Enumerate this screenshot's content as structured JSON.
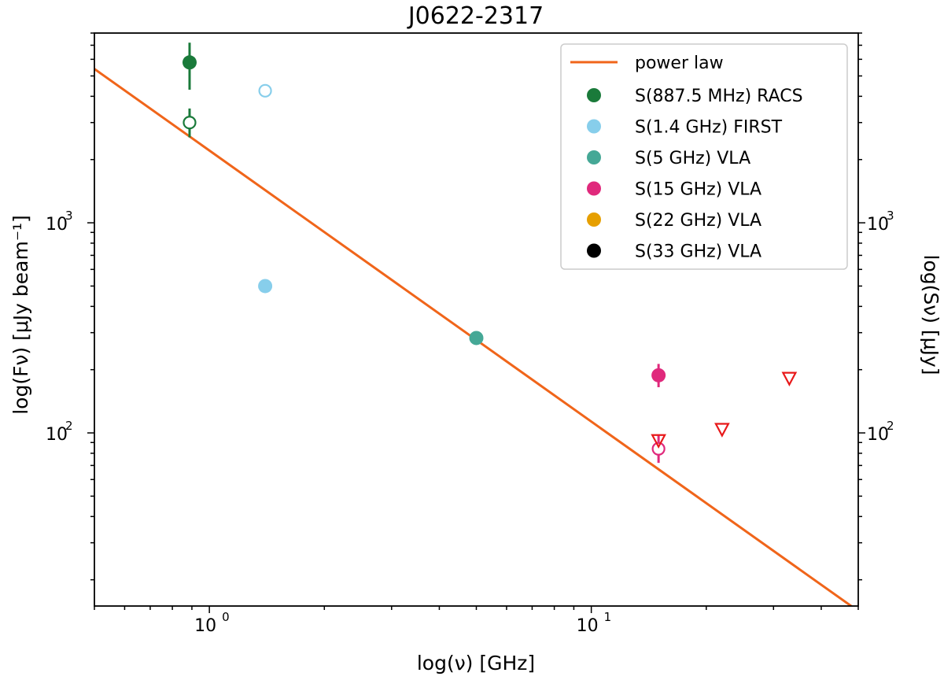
{
  "chart_data": {
    "type": "scatter",
    "title": "J0622-2317",
    "xlabel": "log(ν) [GHz]",
    "ylabel_left": "log(Fν) [μJy beam⁻¹]",
    "ylabel_right": "log(Sν) [μJy]",
    "xscale": "log",
    "yscale": "log",
    "xlim": [
      0.5,
      50
    ],
    "ylim": [
      15,
      8000
    ],
    "x_ticks": [
      {
        "value": 1,
        "label": "10",
        "exp": "0"
      },
      {
        "value": 10,
        "label": "10",
        "exp": "1"
      }
    ],
    "y_ticks": [
      {
        "value": 100,
        "label": "10",
        "exp": "2"
      },
      {
        "value": 1000,
        "label": "10",
        "exp": "3"
      }
    ],
    "legend_position": "top-right",
    "power_law": {
      "name": "power law",
      "color": "#f0651a",
      "x": [
        0.5,
        50
      ],
      "y": [
        5400,
        14.2
      ]
    },
    "series": [
      {
        "name": "S(887.5 MHz) RACS",
        "color": "#1a7a3a",
        "points": [
          {
            "x": 0.8875,
            "y": 5800,
            "filled": true,
            "err": [
              4300,
              7200
            ]
          },
          {
            "x": 0.8875,
            "y": 3000,
            "filled": false,
            "err": [
              2550,
              3500
            ]
          }
        ]
      },
      {
        "name": "S(1.4 GHz) FIRST",
        "color": "#87ceeb",
        "points": [
          {
            "x": 1.4,
            "y": 4250,
            "filled": false
          },
          {
            "x": 1.4,
            "y": 500,
            "filled": true
          }
        ]
      },
      {
        "name": "S(5 GHz) VLA",
        "color": "#45a896",
        "points": [
          {
            "x": 5.0,
            "y": 283,
            "filled": true
          }
        ]
      },
      {
        "name": "S(15 GHz) VLA",
        "color": "#e0297c",
        "points": [
          {
            "x": 15.0,
            "y": 188,
            "filled": true,
            "err": [
              165,
              213
            ]
          },
          {
            "x": 15.0,
            "y": 84,
            "filled": false,
            "err": [
              72,
              97
            ]
          }
        ]
      },
      {
        "name": "S(22 GHz) VLA",
        "color": "#e69f00",
        "points": []
      },
      {
        "name": "S(33 GHz) VLA",
        "color": "#000000",
        "points": []
      }
    ],
    "upper_limits": {
      "color": "#e8191a",
      "points": [
        {
          "x": 15.0,
          "y": 92
        },
        {
          "x": 22.0,
          "y": 104
        },
        {
          "x": 33.0,
          "y": 182
        }
      ]
    }
  }
}
